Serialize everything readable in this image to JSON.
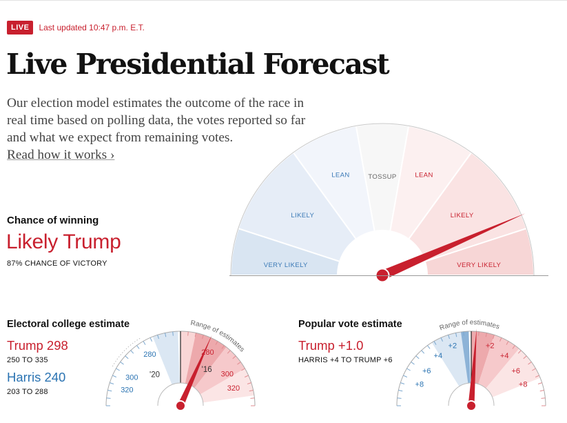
{
  "live": {
    "badge": "LIVE",
    "updated": "Last updated 10:47 p.m. E.T."
  },
  "headline": "Live Presidential Forecast",
  "intro": "Our election model estimates the outcome of the race in real time based on polling data, the votes reported so far and what we expect from remaining votes.",
  "read_link": "Read how it works ›",
  "chance": {
    "label": "Chance of winning",
    "value": "Likely Trump",
    "sub": "87% CHANCE OF VICTORY",
    "probability_trump": 0.87
  },
  "gauge": {
    "segments": [
      {
        "label": "VERY LIKELY",
        "side": "dem",
        "color": "#d9e5f2"
      },
      {
        "label": "LIKELY",
        "side": "dem",
        "color": "#e6edf7"
      },
      {
        "label": "LEAN",
        "side": "dem",
        "color": "#f2f5fb"
      },
      {
        "label": "TOSSUP",
        "side": "none",
        "color": "#f7f7f7"
      },
      {
        "label": "LEAN",
        "side": "rep",
        "color": "#fcf0f0"
      },
      {
        "label": "LIKELY",
        "side": "rep",
        "color": "#fae3e3"
      },
      {
        "label": "VERY LIKELY",
        "side": "rep",
        "color": "#f7d6d6"
      }
    ],
    "dem_label_color": "#3a79b6",
    "rep_label_color": "#c8202e",
    "needle_color": "#c8202e"
  },
  "electoral": {
    "title": "Electoral college estimate",
    "trump": "Trump 298",
    "trump_range": "250 TO 335",
    "harris": "Harris 240",
    "harris_range": "203 TO 288",
    "arc_label": "Range of estimates",
    "ticks_dem": [
      "320",
      "300",
      "280"
    ],
    "ticks_rep": [
      "280",
      "300",
      "320"
    ],
    "past_markers": [
      "'20",
      "'16"
    ]
  },
  "popular": {
    "title": "Popular vote estimate",
    "trump": "Trump +1.0",
    "range": "HARRIS +4 TO TRUMP +6",
    "arc_label": "Range of estimates",
    "ticks_dem": [
      "+8",
      "+6",
      "+4",
      "+2"
    ],
    "ticks_rep": [
      "+2",
      "+4",
      "+6",
      "+8"
    ]
  },
  "colors": {
    "red": "#c8202e",
    "blue": "#2a73b2"
  }
}
